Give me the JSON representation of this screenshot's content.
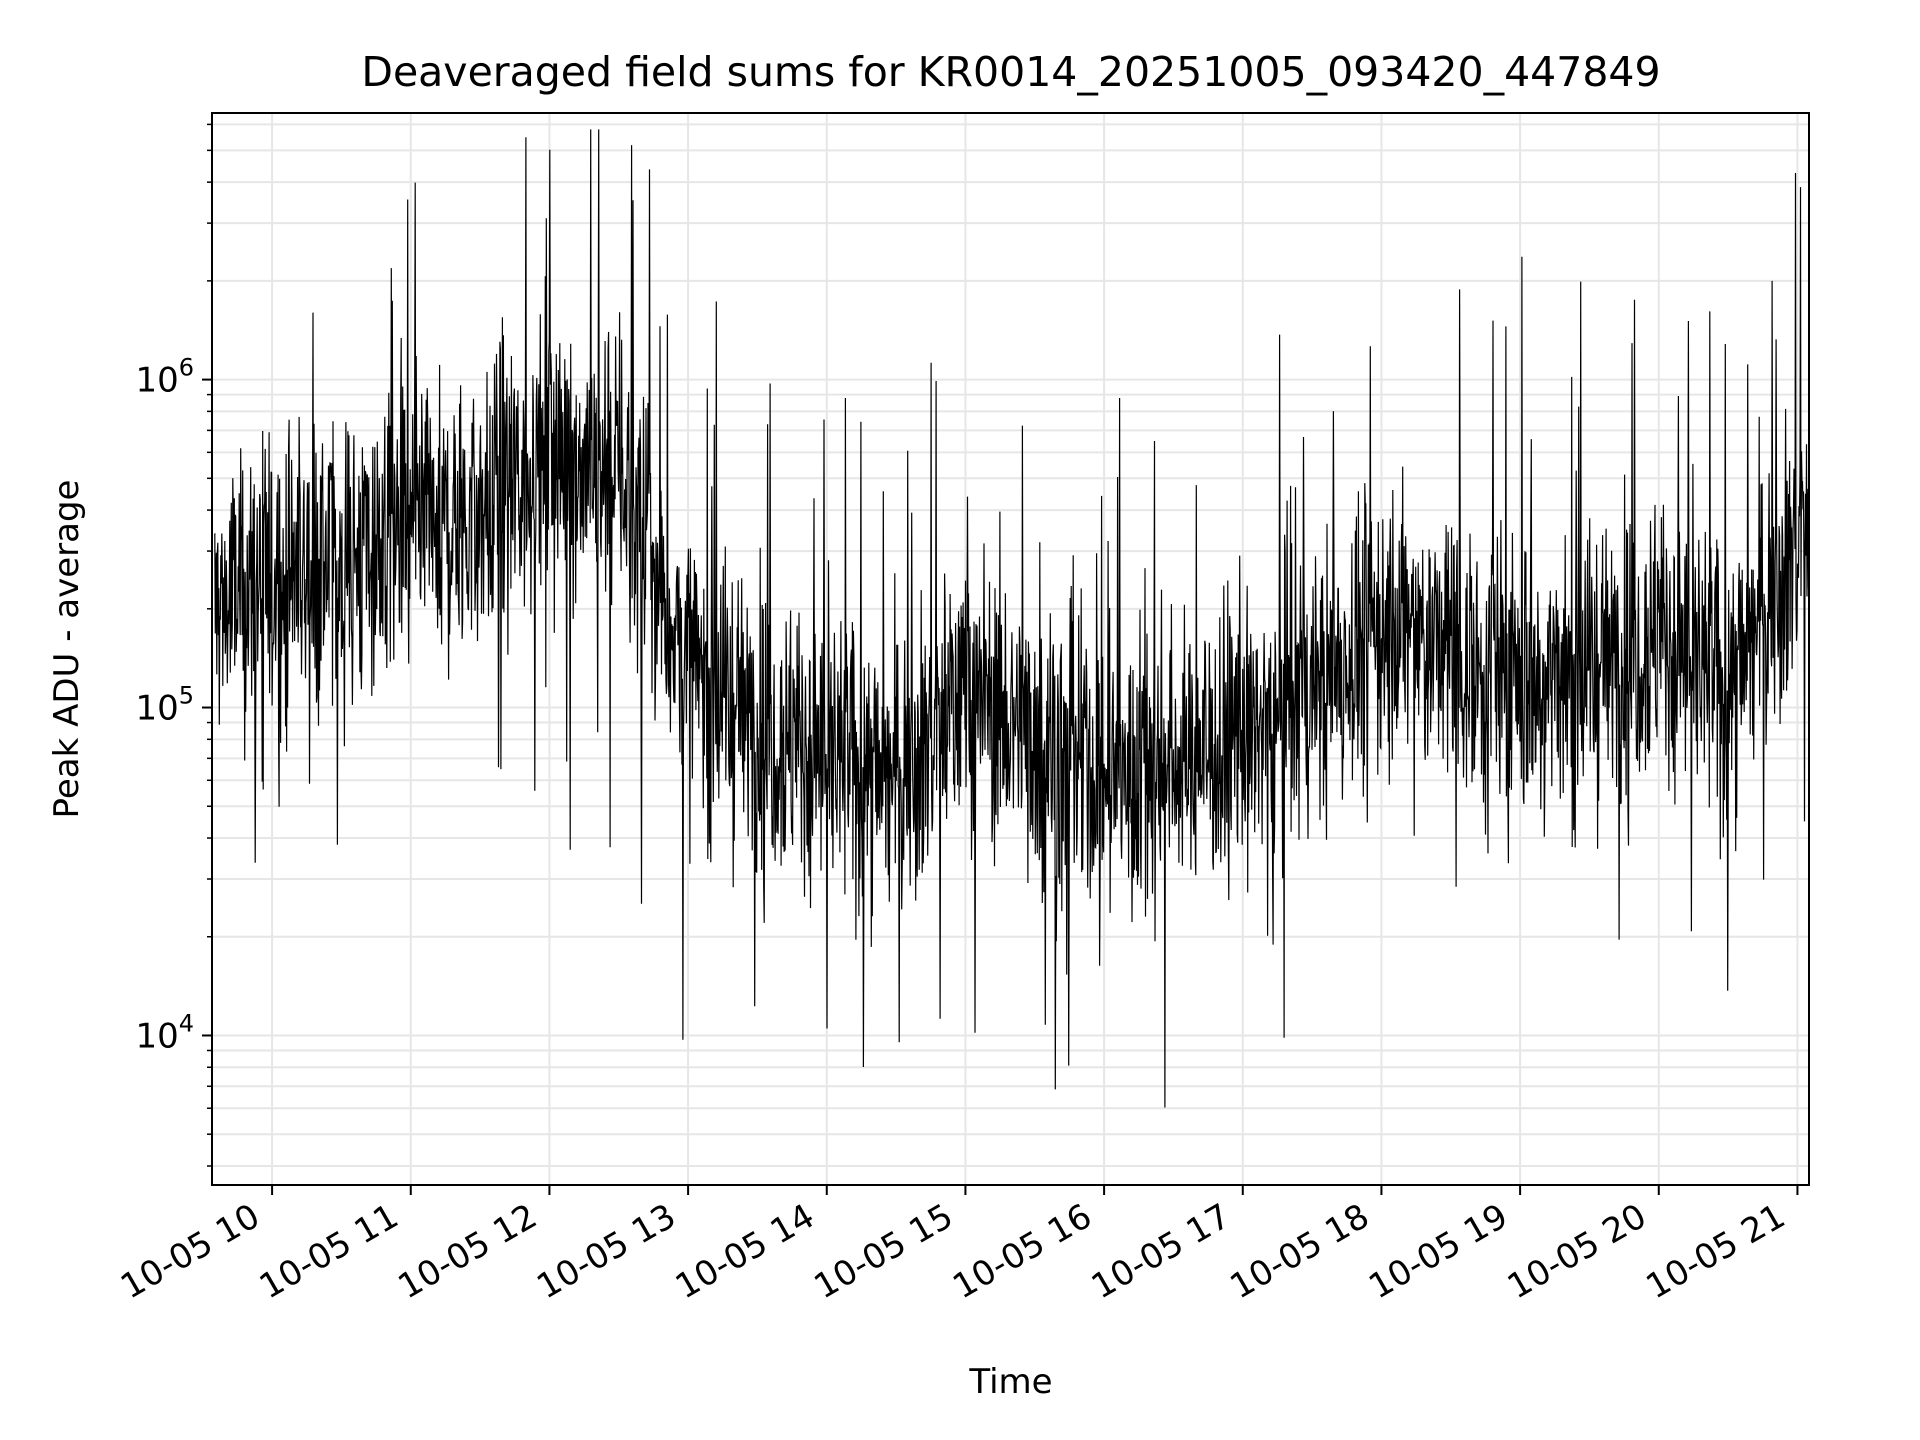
{
  "chart_data": {
    "type": "line",
    "title": "Deaveraged field sums for KR0014_20251005_093420_447849",
    "xlabel": "Time",
    "ylabel": "Peak ADU - average",
    "yscale": "log",
    "ylim": [
      3500,
      6500000
    ],
    "xlim": [
      "2025-10-05T09:34",
      "2025-10-05T21:05"
    ],
    "grid": true,
    "line_color": "#000000",
    "x_ticks": [
      "10-05 10",
      "10-05 11",
      "10-05 12",
      "10-05 13",
      "10-05 14",
      "10-05 15",
      "10-05 16",
      "10-05 17",
      "10-05 18",
      "10-05 19",
      "10-05 20",
      "10-05 21"
    ],
    "y_ticks": [
      {
        "value": 10000,
        "base": "10",
        "exp": "4"
      },
      {
        "value": 100000,
        "base": "10",
        "exp": "5"
      },
      {
        "value": 1000000,
        "base": "10",
        "exp": "6"
      }
    ],
    "series": [
      {
        "x": [
          "2025-10-05T09:35",
          "2025-10-05T10:00",
          "2025-10-05T10:30",
          "2025-10-05T11:00",
          "2025-10-05T11:30",
          "2025-10-05T12:00",
          "2025-10-05T12:30",
          "2025-10-05T13:00",
          "2025-10-05T13:30",
          "2025-10-05T14:00",
          "2025-10-05T14:30",
          "2025-10-05T15:00",
          "2025-10-05T15:30",
          "2025-10-05T16:00",
          "2025-10-05T16:30",
          "2025-10-05T17:00",
          "2025-10-05T17:30",
          "2025-10-05T18:00",
          "2025-10-05T18:30",
          "2025-10-05T19:00",
          "2025-10-05T19:30",
          "2025-10-05T20:00",
          "2025-10-05T20:30",
          "2025-10-05T21:05"
        ],
        "y": [
          200000,
          250000,
          280000,
          330000,
          380000,
          600000,
          550000,
          130000,
          90000,
          70000,
          60000,
          120000,
          80000,
          60000,
          70000,
          80000,
          110000,
          180000,
          150000,
          120000,
          130000,
          170000,
          110000,
          400000
        ]
      }
    ]
  }
}
